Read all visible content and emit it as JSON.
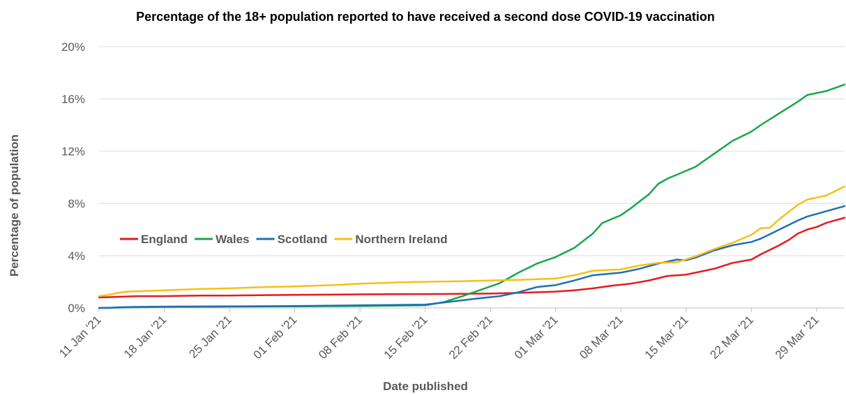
{
  "chart_data": {
    "type": "line",
    "title": "Percentage of the 18+ population reported to have received a second dose COVID-19 vaccination",
    "xlabel": "Date published",
    "ylabel": "Percentage of population",
    "x_start": "11 Jan '21",
    "x_end": "01 Apr '21",
    "x_ticks": [
      "11 Jan '21",
      "18 Jan '21",
      "25 Jan '21",
      "01 Feb '21",
      "08 Feb '21",
      "15 Feb '21",
      "22 Feb '21",
      "01 Mar '21",
      "08 Mar '21",
      "15 Mar '21",
      "22 Mar '21",
      "29 Mar '21"
    ],
    "y_ticks": [
      "0%",
      "4%",
      "8%",
      "12%",
      "16%",
      "20%"
    ],
    "ylim": [
      0,
      20
    ],
    "grid": "horizontal",
    "legend_position": "left-middle",
    "series": [
      {
        "name": "England",
        "color": "#e8191c",
        "points": [
          [
            "11 Jan '21",
            0.8
          ],
          [
            "13 Jan '21",
            0.85
          ],
          [
            "15 Jan '21",
            0.9
          ],
          [
            "18 Jan '21",
            0.9
          ],
          [
            "22 Jan '21",
            0.95
          ],
          [
            "25 Jan '21",
            0.95
          ],
          [
            "29 Jan '21",
            0.98
          ],
          [
            "01 Feb '21",
            1.0
          ],
          [
            "05 Feb '21",
            1.02
          ],
          [
            "08 Feb '21",
            1.04
          ],
          [
            "12 Feb '21",
            1.05
          ],
          [
            "15 Feb '21",
            1.06
          ],
          [
            "19 Feb '21",
            1.08
          ],
          [
            "22 Feb '21",
            1.1
          ],
          [
            "25 Feb '21",
            1.15
          ],
          [
            "27 Feb '21",
            1.2
          ],
          [
            "01 Mar '21",
            1.25
          ],
          [
            "03 Mar '21",
            1.35
          ],
          [
            "05 Mar '21",
            1.5
          ],
          [
            "07 Mar '21",
            1.7
          ],
          [
            "09 Mar '21",
            1.85
          ],
          [
            "11 Mar '21",
            2.1
          ],
          [
            "13 Mar '21",
            2.45
          ],
          [
            "15 Mar '21",
            2.55
          ],
          [
            "16 Mar '21",
            2.7
          ],
          [
            "18 Mar '21",
            3.0
          ],
          [
            "20 Mar '21",
            3.45
          ],
          [
            "22 Mar '21",
            3.7
          ],
          [
            "23 Mar '21",
            4.1
          ],
          [
            "25 Mar '21",
            4.8
          ],
          [
            "26 Mar '21",
            5.2
          ],
          [
            "27 Mar '21",
            5.7
          ],
          [
            "28 Mar '21",
            6.0
          ],
          [
            "29 Mar '21",
            6.2
          ],
          [
            "30 Mar '21",
            6.5
          ],
          [
            "01 Apr '21",
            6.9
          ]
        ]
      },
      {
        "name": "Wales",
        "color": "#14a846",
        "points": [
          [
            "11 Jan '21",
            0.0
          ],
          [
            "15 Jan '21",
            0.05
          ],
          [
            "18 Jan '21",
            0.08
          ],
          [
            "25 Jan '21",
            0.1
          ],
          [
            "01 Feb '21",
            0.12
          ],
          [
            "08 Feb '21",
            0.15
          ],
          [
            "15 Feb '21",
            0.2
          ],
          [
            "17 Feb '21",
            0.45
          ],
          [
            "19 Feb '21",
            0.9
          ],
          [
            "21 Feb '21",
            1.4
          ],
          [
            "23 Feb '21",
            1.9
          ],
          [
            "25 Feb '21",
            2.7
          ],
          [
            "27 Feb '21",
            3.4
          ],
          [
            "01 Mar '21",
            3.9
          ],
          [
            "03 Mar '21",
            4.6
          ],
          [
            "05 Mar '21",
            5.7
          ],
          [
            "06 Mar '21",
            6.5
          ],
          [
            "08 Mar '21",
            7.1
          ],
          [
            "09 Mar '21",
            7.6
          ],
          [
            "11 Mar '21",
            8.7
          ],
          [
            "12 Mar '21",
            9.5
          ],
          [
            "13 Mar '21",
            9.9
          ],
          [
            "15 Mar '21",
            10.5
          ],
          [
            "16 Mar '21",
            10.8
          ],
          [
            "18 Mar '21",
            11.8
          ],
          [
            "20 Mar '21",
            12.8
          ],
          [
            "22 Mar '21",
            13.5
          ],
          [
            "23 Mar '21",
            14.0
          ],
          [
            "25 Mar '21",
            14.9
          ],
          [
            "27 Mar '21",
            15.8
          ],
          [
            "28 Mar '21",
            16.3
          ],
          [
            "30 Mar '21",
            16.6
          ],
          [
            "01 Apr '21",
            17.1
          ]
        ]
      },
      {
        "name": "Scotland",
        "color": "#1f6fb5",
        "points": [
          [
            "11 Jan '21",
            0.0
          ],
          [
            "12 Jan '21",
            0.0
          ],
          [
            "13 Jan '21",
            0.05
          ],
          [
            "15 Jan '21",
            0.08
          ],
          [
            "18 Jan '21",
            0.1
          ],
          [
            "25 Jan '21",
            0.12
          ],
          [
            "01 Feb '21",
            0.15
          ],
          [
            "08 Feb '21",
            0.2
          ],
          [
            "15 Feb '21",
            0.25
          ],
          [
            "18 Feb '21",
            0.5
          ],
          [
            "21 Feb '21",
            0.75
          ],
          [
            "23 Feb '21",
            0.9
          ],
          [
            "25 Feb '21",
            1.2
          ],
          [
            "27 Feb '21",
            1.6
          ],
          [
            "01 Mar '21",
            1.75
          ],
          [
            "03 Mar '21",
            2.1
          ],
          [
            "05 Mar '21",
            2.5
          ],
          [
            "08 Mar '21",
            2.7
          ],
          [
            "10 Mar '21",
            3.0
          ],
          [
            "12 Mar '21",
            3.4
          ],
          [
            "14 Mar '21",
            3.7
          ],
          [
            "15 Mar '21",
            3.65
          ],
          [
            "16 Mar '21",
            3.85
          ],
          [
            "18 Mar '21",
            4.4
          ],
          [
            "20 Mar '21",
            4.8
          ],
          [
            "22 Mar '21",
            5.05
          ],
          [
            "23 Mar '21",
            5.3
          ],
          [
            "25 Mar '21",
            6.0
          ],
          [
            "27 Mar '21",
            6.7
          ],
          [
            "28 Mar '21",
            7.0
          ],
          [
            "30 Mar '21",
            7.4
          ],
          [
            "01 Apr '21",
            7.8
          ]
        ]
      },
      {
        "name": "Northern Ireland",
        "color": "#f7bf17",
        "points": [
          [
            "11 Jan '21",
            0.9
          ],
          [
            "12 Jan '21",
            1.0
          ],
          [
            "13 Jan '21",
            1.15
          ],
          [
            "14 Jan '21",
            1.25
          ],
          [
            "18 Jan '21",
            1.35
          ],
          [
            "22 Jan '21",
            1.45
          ],
          [
            "25 Jan '21",
            1.5
          ],
          [
            "29 Jan '21",
            1.6
          ],
          [
            "01 Feb '21",
            1.65
          ],
          [
            "05 Feb '21",
            1.75
          ],
          [
            "08 Feb '21",
            1.85
          ],
          [
            "12 Feb '21",
            1.95
          ],
          [
            "15 Feb '21",
            2.0
          ],
          [
            "19 Feb '21",
            2.05
          ],
          [
            "22 Feb '21",
            2.1
          ],
          [
            "25 Feb '21",
            2.15
          ],
          [
            "27 Feb '21",
            2.2
          ],
          [
            "01 Mar '21",
            2.25
          ],
          [
            "03 Mar '21",
            2.5
          ],
          [
            "05 Mar '21",
            2.85
          ],
          [
            "08 Mar '21",
            2.95
          ],
          [
            "10 Mar '21",
            3.25
          ],
          [
            "12 Mar '21",
            3.45
          ],
          [
            "14 Mar '21",
            3.5
          ],
          [
            "16 Mar '21",
            3.95
          ],
          [
            "18 Mar '21",
            4.5
          ],
          [
            "20 Mar '21",
            5.0
          ],
          [
            "21 Mar '21",
            5.3
          ],
          [
            "22 Mar '21",
            5.6
          ],
          [
            "23 Mar '21",
            6.1
          ],
          [
            "24 Mar '21",
            6.15
          ],
          [
            "25 Mar '21",
            6.8
          ],
          [
            "27 Mar '21",
            7.9
          ],
          [
            "28 Mar '21",
            8.3
          ],
          [
            "30 Mar '21",
            8.6
          ],
          [
            "01 Apr '21",
            9.3
          ]
        ]
      }
    ]
  }
}
